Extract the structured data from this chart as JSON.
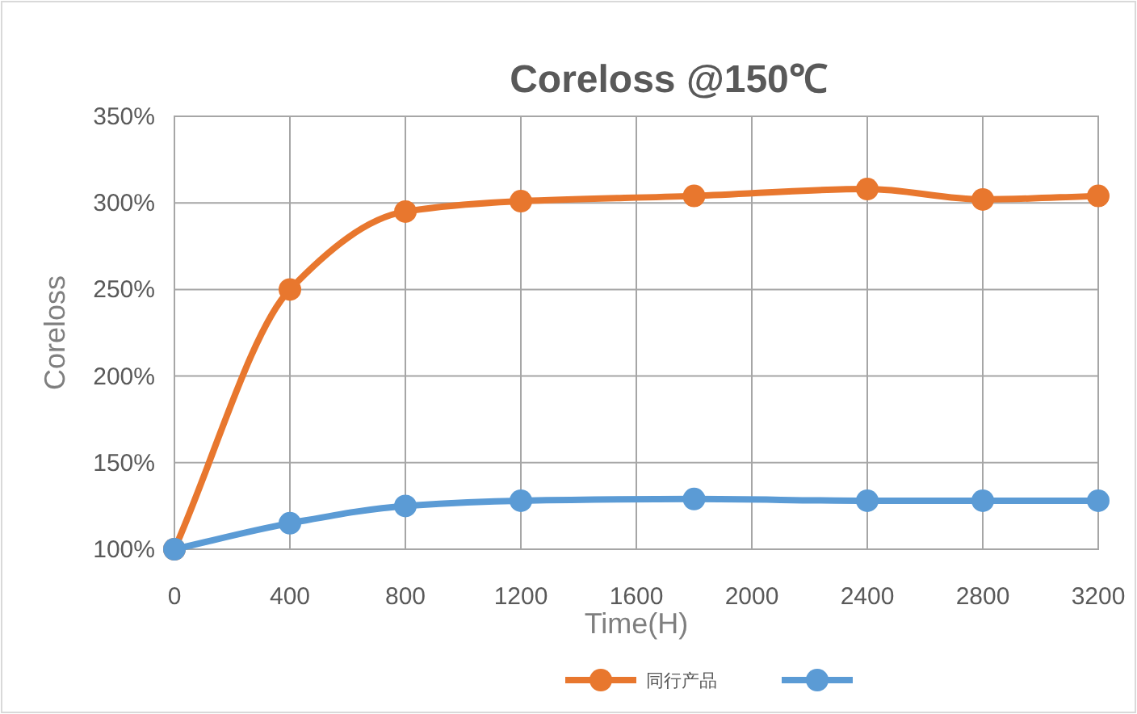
{
  "chart_data": {
    "type": "line",
    "title": "Coreloss @150℃",
    "xlabel": "Time(H)",
    "ylabel": "Coreloss",
    "x": [
      0,
      400,
      800,
      1200,
      1800,
      2400,
      2800,
      3200
    ],
    "series": [
      {
        "name": "同行产品",
        "color": "#e8772e",
        "values": [
          100,
          250,
          295,
          301,
          304,
          308,
          302,
          304
        ]
      },
      {
        "color": "#5b9bd5",
        "values": [
          100,
          115,
          125,
          128,
          129,
          128,
          128,
          128
        ]
      }
    ],
    "xlim": [
      0,
      3200
    ],
    "xticks": [
      0,
      400,
      800,
      1200,
      1600,
      2000,
      2400,
      2800,
      3200
    ],
    "ylim": [
      100,
      350
    ],
    "yticks": [
      {
        "value": 100,
        "label": "100%"
      },
      {
        "value": 150,
        "label": "150%"
      },
      {
        "value": 200,
        "label": "200%"
      },
      {
        "value": 250,
        "label": "250%"
      },
      {
        "value": 300,
        "label": "300%"
      },
      {
        "value": 350,
        "label": "350%"
      }
    ],
    "grid": true,
    "legend": "bottom right",
    "marker": "circle",
    "line_style": "solid"
  }
}
